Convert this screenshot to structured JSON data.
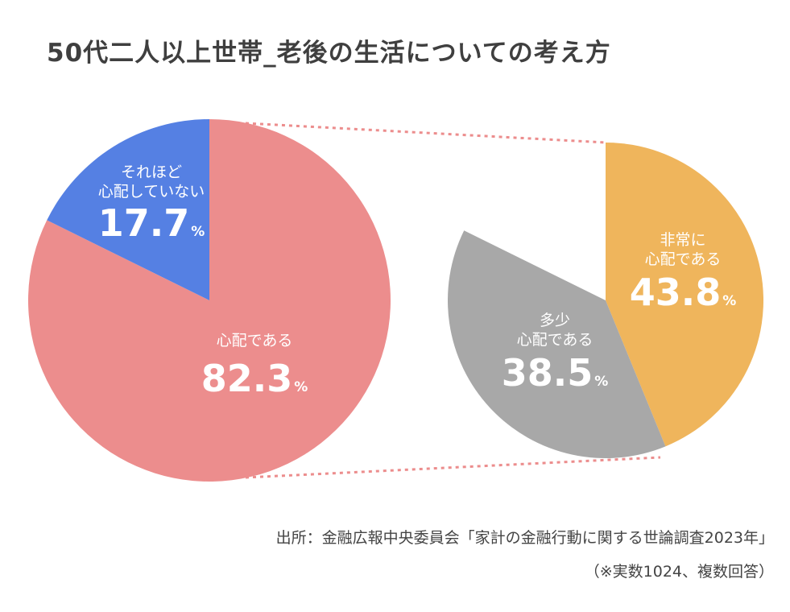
{
  "title": "50代二人以上世帯_老後の生活についての考え方",
  "chart_data": {
    "type": "pie",
    "title": "50代二人以上世帯_老後の生活についての考え方",
    "main_pie": {
      "slices": [
        {
          "label": "心配である",
          "value": 82.3,
          "color": "#ec8d8d"
        },
        {
          "label": "それほど心配していない",
          "label_lines": [
            "それほど",
            "心配していない"
          ],
          "value": 17.7,
          "color": "#5580e3"
        }
      ]
    },
    "breakdown_pie": {
      "of": "心配である",
      "slices": [
        {
          "label": "非常に心配である",
          "label_lines": [
            "非常に",
            "心配である"
          ],
          "value": 43.8,
          "color": "#efb55c"
        },
        {
          "label": "多少心配である",
          "label_lines": [
            "多少",
            "心配である"
          ],
          "value": 38.5,
          "color": "#a8a8a8"
        }
      ]
    },
    "unit": "%",
    "connector_color": "#ec8d8d"
  },
  "source": "出所：金融広報中央委員会「家計の金融行動に関する世論調査2023年」",
  "note": "（※実数1024、複数回答）"
}
